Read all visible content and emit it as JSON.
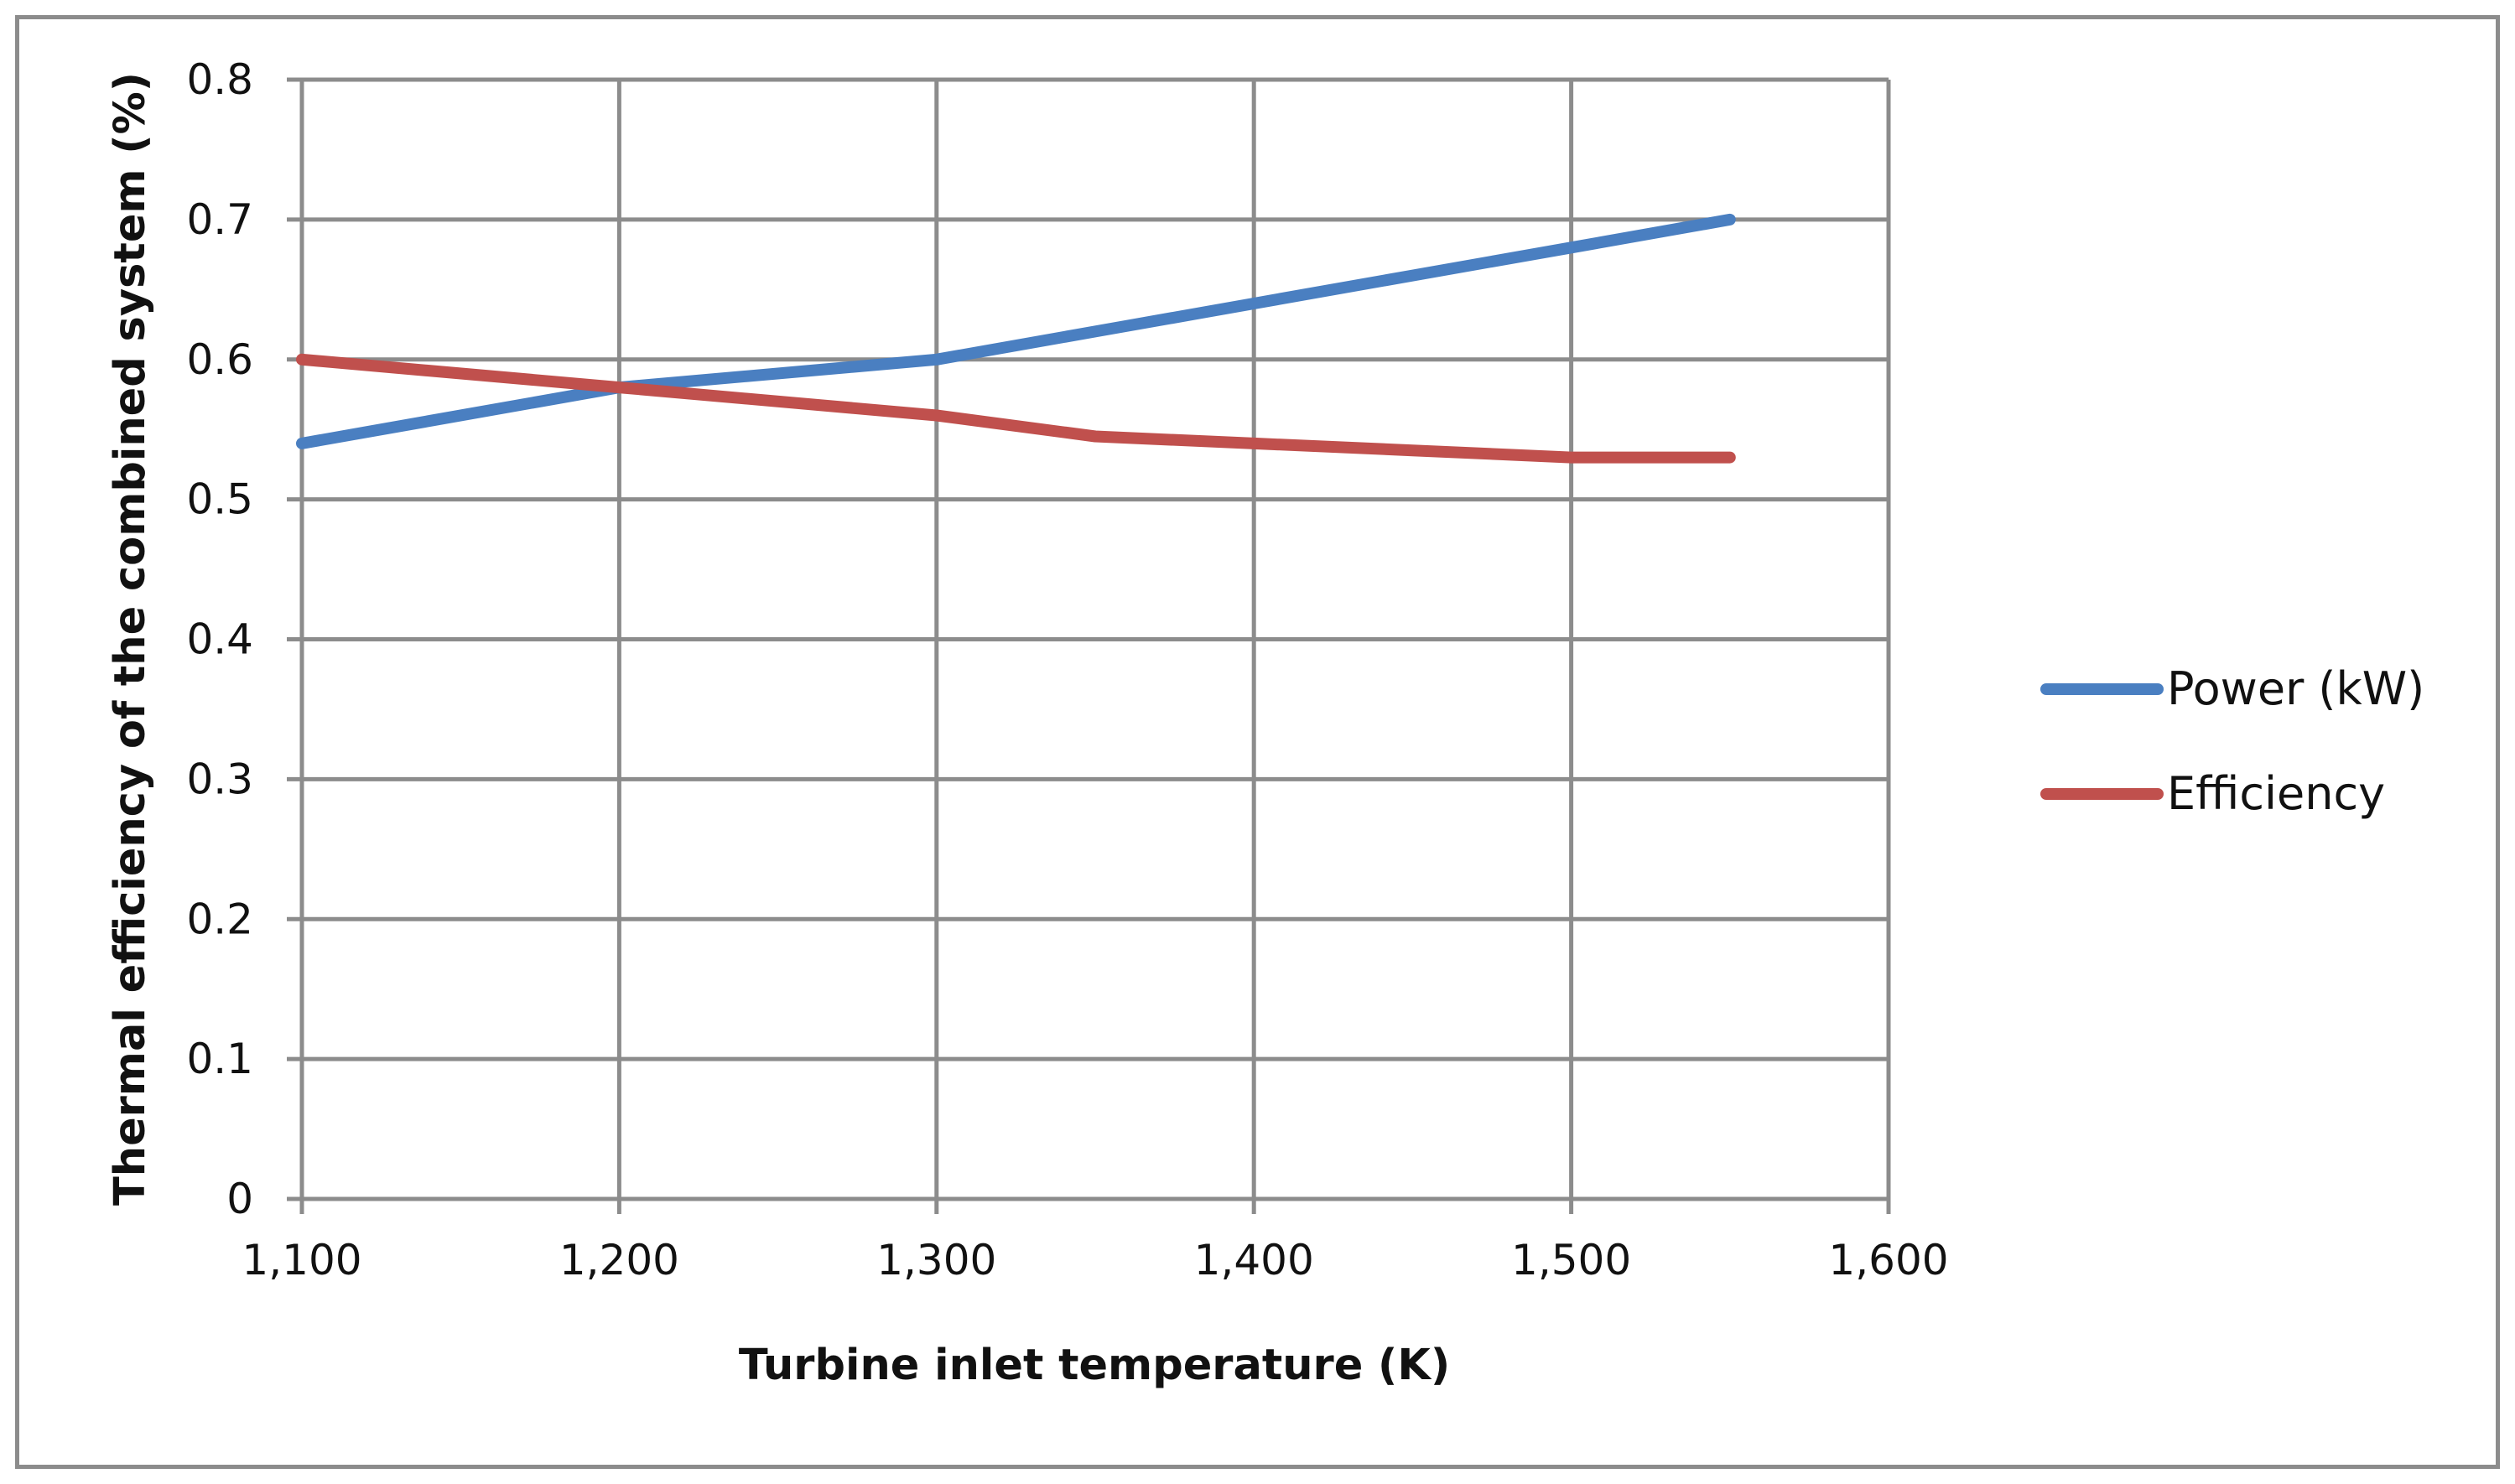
{
  "chart_data": {
    "type": "line",
    "title": "",
    "xlabel": "Turbine inlet temperature (K)",
    "ylabel": "Thermal efficiency of the combined system (%)",
    "xlim": [
      1100,
      1600
    ],
    "ylim": [
      0,
      0.8
    ],
    "grid": true,
    "legend_position": "right",
    "x_ticks": [
      1100,
      1200,
      1300,
      1400,
      1500,
      1600
    ],
    "x_tick_labels": [
      "1,100",
      "1,200",
      "1,300",
      "1,400",
      "1,500",
      "1,600"
    ],
    "y_ticks": [
      0,
      0.1,
      0.2,
      0.3,
      0.4,
      0.5,
      0.6,
      0.7,
      0.8
    ],
    "y_tick_labels": [
      "0",
      "0.1",
      "0.2",
      "0.3",
      "0.4",
      "0.5",
      "0.6",
      "0.7",
      "0.8"
    ],
    "series": [
      {
        "name": "Power (kW)",
        "color": "#4a7fc1",
        "x": [
          1100,
          1200,
          1300,
          1350,
          1400,
          1450,
          1500,
          1550
        ],
        "values": [
          0.54,
          0.58,
          0.6,
          0.62,
          0.64,
          0.66,
          0.68,
          0.7
        ]
      },
      {
        "name": "Efficiency",
        "color": "#c0504d",
        "x": [
          1100,
          1200,
          1300,
          1350,
          1400,
          1450,
          1500,
          1550
        ],
        "values": [
          0.6,
          0.58,
          0.56,
          0.545,
          0.54,
          0.535,
          0.53,
          0.53
        ]
      }
    ]
  }
}
